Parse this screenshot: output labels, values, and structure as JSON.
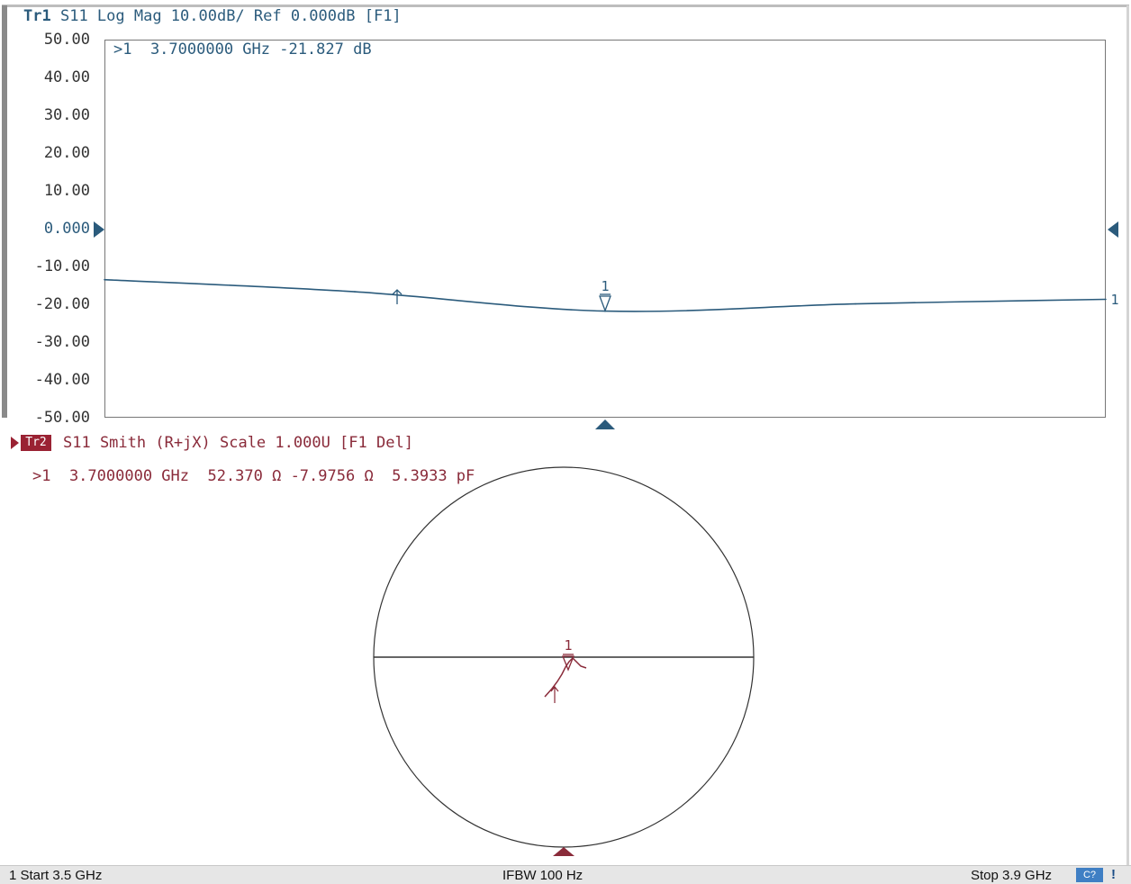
{
  "trace1": {
    "label": "Tr1",
    "header": "S11 Log Mag 10.00dB/ Ref 0.000dB [F1]",
    "marker_readout": ">1  3.7000000 GHz -21.827 dB",
    "marker_number": "1",
    "end_label": "1",
    "color": "#2b5b7c"
  },
  "trace2": {
    "label": "Tr2",
    "header": "S11 Smith (R+jX) Scale 1.000U [F1 Del]",
    "marker_readout": ">1  3.7000000 GHz  52.370 Ω -7.9756 Ω  5.3933 pF",
    "marker_number": "1",
    "color": "#8a2b3a"
  },
  "y_ticks": [
    "50.00",
    "40.00",
    "30.00",
    "20.00",
    "10.00",
    "0.000",
    "-10.00",
    "-20.00",
    "-30.00",
    "-40.00",
    "-50.00"
  ],
  "chart_data": {
    "type": "line",
    "x": [
      3.5,
      3.6,
      3.7,
      3.8,
      3.9
    ],
    "series": [
      {
        "values": [
          -13.5,
          -16.7,
          -21.8,
          -19.9,
          -18.7
        ]
      }
    ],
    "ylim": [
      -50,
      50
    ],
    "xlim": [
      3.5,
      3.9
    ],
    "reference_value": 0,
    "marker_x": 3.7,
    "marker_y": -21.827
  },
  "status": {
    "start": "1 Start 3.5 GHz",
    "ifbw": "IFBW 100 Hz",
    "stop": "Stop 3.9 GHz",
    "indicator": "C?",
    "alert": "!"
  },
  "colors": {
    "trace1": "#2b5b7c",
    "trace2": "#8a2b3a",
    "grid_border": "#777777"
  }
}
